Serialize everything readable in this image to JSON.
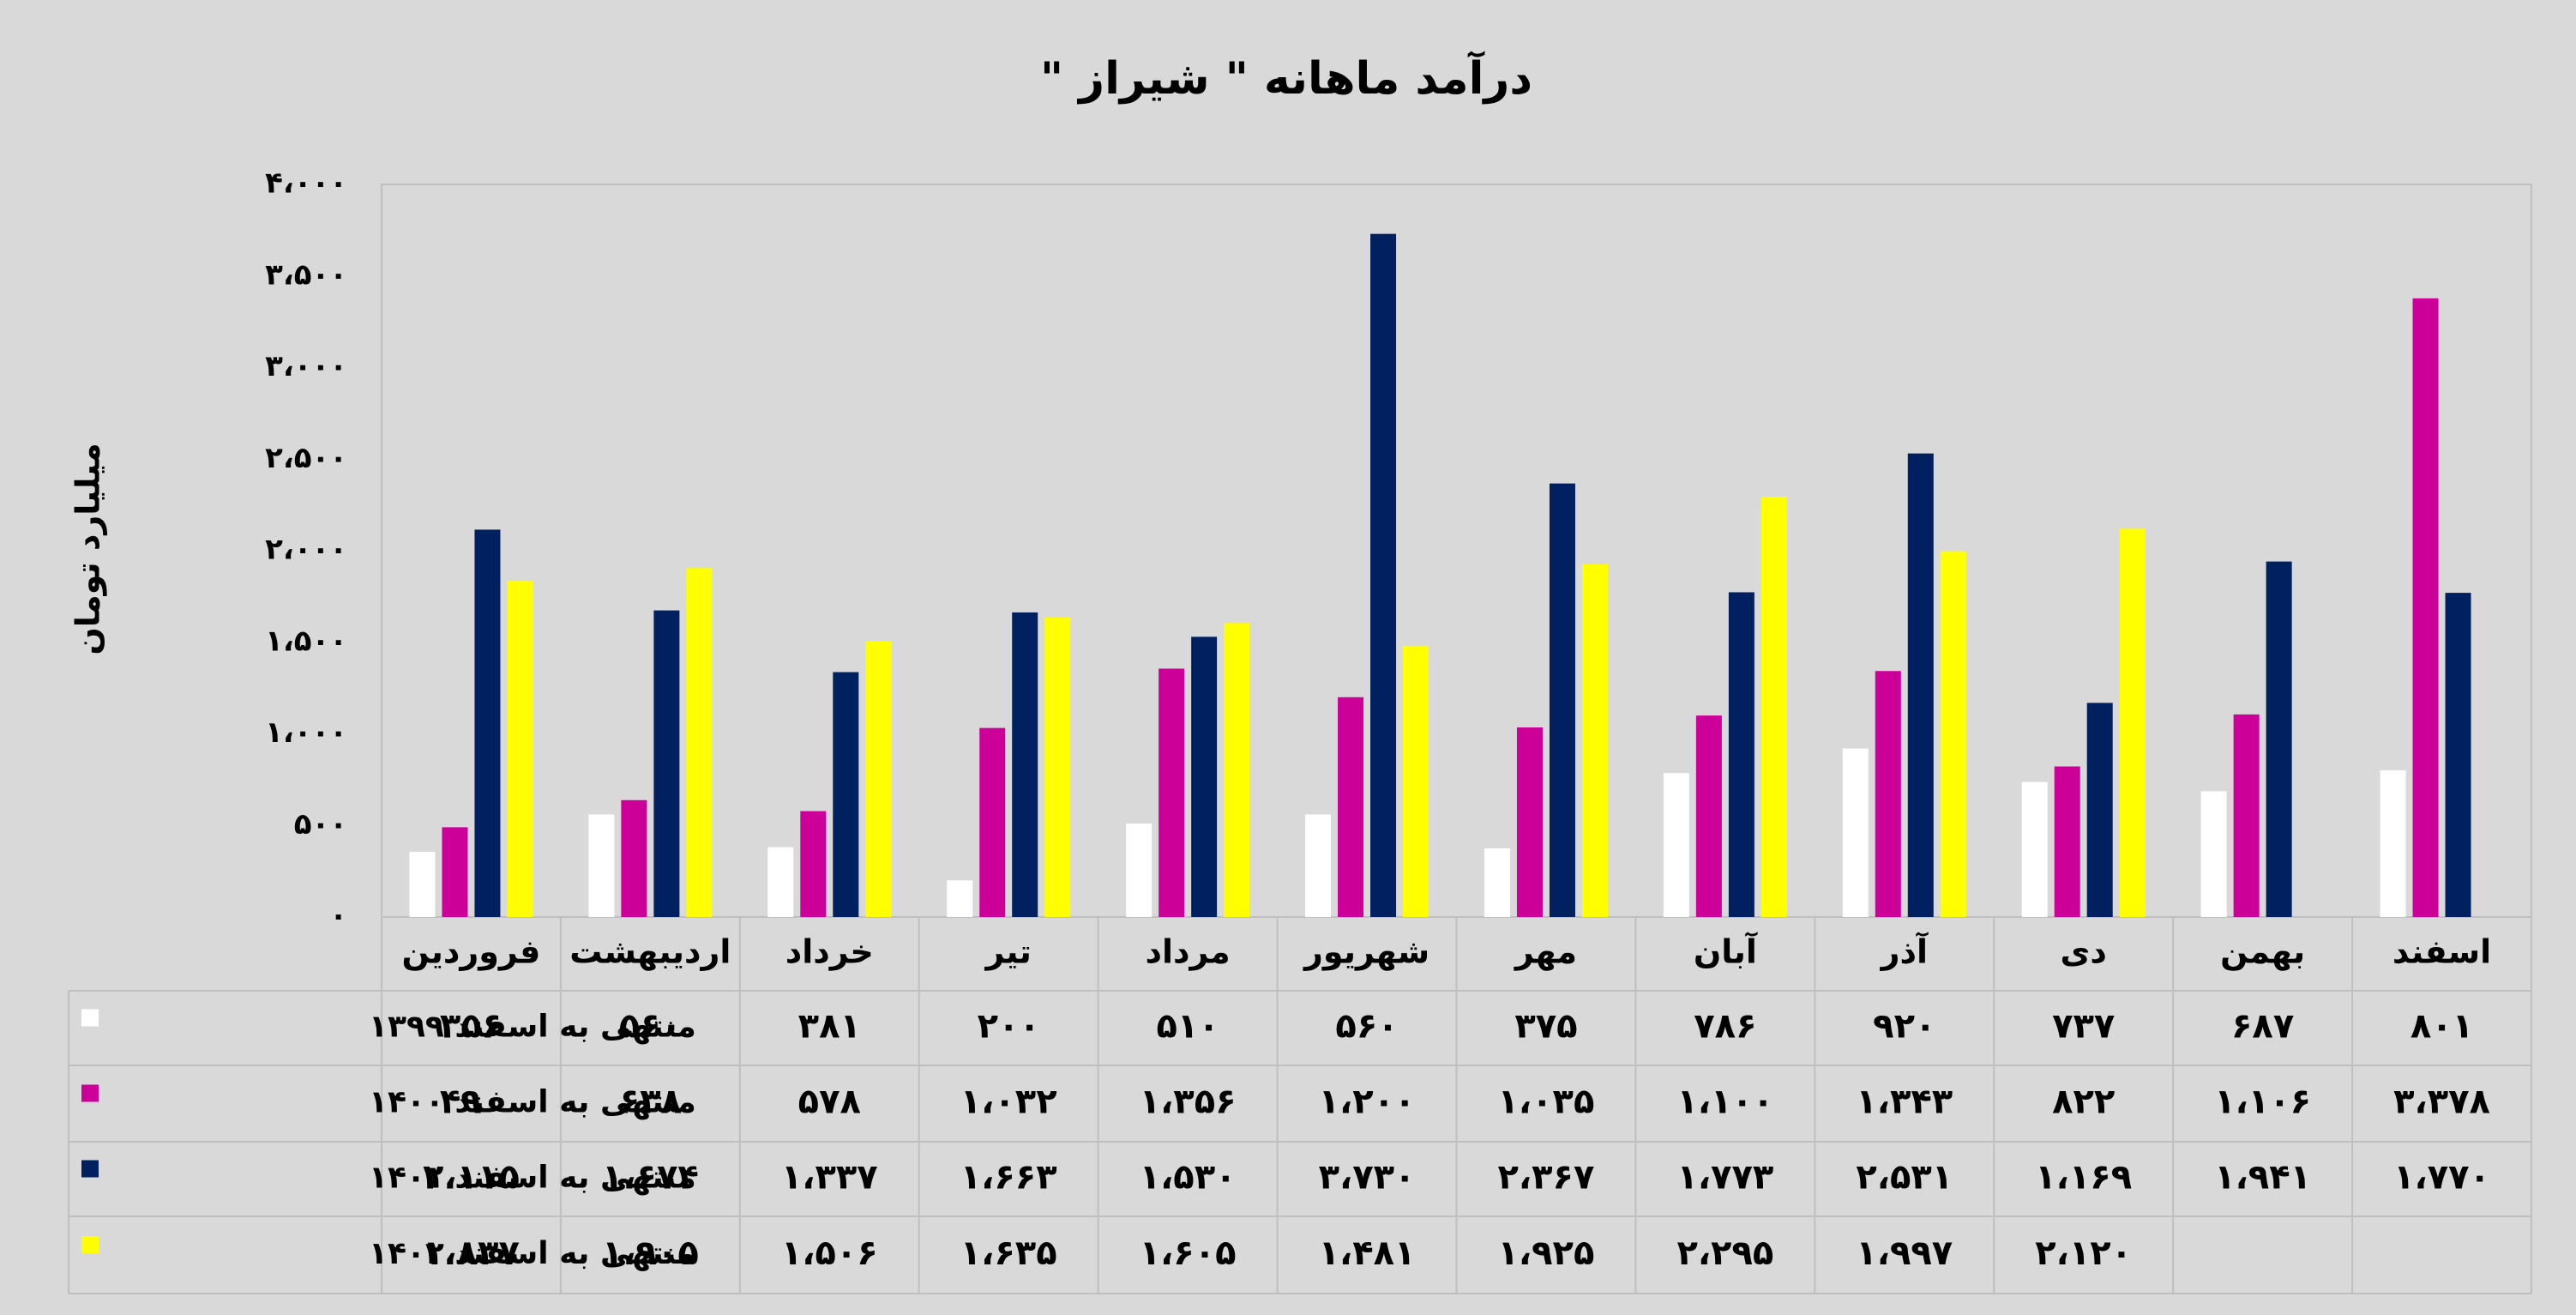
{
  "chart_data": {
    "type": "bar",
    "title": "درآمد ماهانه \" شیراز \"",
    "y_label": "میلیارد تومان",
    "categories": [
      "فروردین",
      "اردیبهشت",
      "خرداد",
      "تیر",
      "مرداد",
      "شهریور",
      "مهر",
      "آبان",
      "آذر",
      "دی",
      "بهمن",
      "اسفند"
    ],
    "series": [
      {
        "name": "منتهی به اسفند ۱۳۹۹",
        "color": "#ffffff",
        "values": [
          356,
          560,
          381,
          200,
          510,
          560,
          375,
          786,
          920,
          737,
          687,
          801
        ],
        "value_labels": [
          "۳۵۶",
          "۵۶۰",
          "۳۸۱",
          "۲۰۰",
          "۵۱۰",
          "۵۶۰",
          "۳۷۵",
          "۷۸۶",
          "۹۲۰",
          "۷۳۷",
          "۶۸۷",
          "۸۰۱"
        ]
      },
      {
        "name": "منتهی به اسفند ۱۴۰۰",
        "color": "#cc0099",
        "values": [
          490,
          638,
          578,
          1032,
          1356,
          1200,
          1035,
          1100,
          1343,
          822,
          1106,
          3378
        ],
        "value_labels": [
          "۴۹۰",
          "۶۳۸",
          "۵۷۸",
          "۱،۰۳۲",
          "۱،۳۵۶",
          "۱،۲۰۰",
          "۱،۰۳۵",
          "۱،۱۰۰",
          "۱،۳۴۳",
          "۸۲۲",
          "۱،۱۰۶",
          "۳،۳۷۸"
        ]
      },
      {
        "name": "منتهی به اسفند ۱۴۰۱",
        "color": "#002060",
        "values": [
          2115,
          1674,
          1337,
          1663,
          1530,
          3730,
          2367,
          1773,
          2531,
          1169,
          1941,
          1770
        ],
        "value_labels": [
          "۲،۱۱۵",
          "۱،۶۷۴",
          "۱،۳۳۷",
          "۱،۶۶۳",
          "۱،۵۳۰",
          "۳،۷۳۰",
          "۲،۳۶۷",
          "۱،۷۷۳",
          "۲،۵۳۱",
          "۱،۱۶۹",
          "۱،۹۴۱",
          "۱،۷۷۰"
        ]
      },
      {
        "name": "منتهی به اسفند ۱۴۰۲",
        "color": "#ffff00",
        "values": [
          1837,
          1905,
          1506,
          1635,
          1605,
          1481,
          1925,
          2295,
          1997,
          2120,
          null,
          null
        ],
        "value_labels": [
          "۱،۸۳۷",
          "۱،۹۰۵",
          "۱،۵۰۶",
          "۱،۶۳۵",
          "۱،۶۰۵",
          "۱،۴۸۱",
          "۱،۹۲۵",
          "۲،۲۹۵",
          "۱،۹۹۷",
          "۲،۱۲۰",
          null,
          null
        ]
      }
    ],
    "ylim": [
      0,
      4000
    ],
    "yticks": [
      {
        "value": 0,
        "label": "۰"
      },
      {
        "value": 500,
        "label": "۵۰۰"
      },
      {
        "value": 1000,
        "label": "۱،۰۰۰"
      },
      {
        "value": 1500,
        "label": "۱،۵۰۰"
      },
      {
        "value": 2000,
        "label": "۲،۰۰۰"
      },
      {
        "value": 2500,
        "label": "۲،۵۰۰"
      },
      {
        "value": 3000,
        "label": "۳،۰۰۰"
      },
      {
        "value": 3500,
        "label": "۳،۵۰۰"
      },
      {
        "value": 4000,
        "label": "۴،۰۰۰"
      }
    ],
    "grid": false
  }
}
